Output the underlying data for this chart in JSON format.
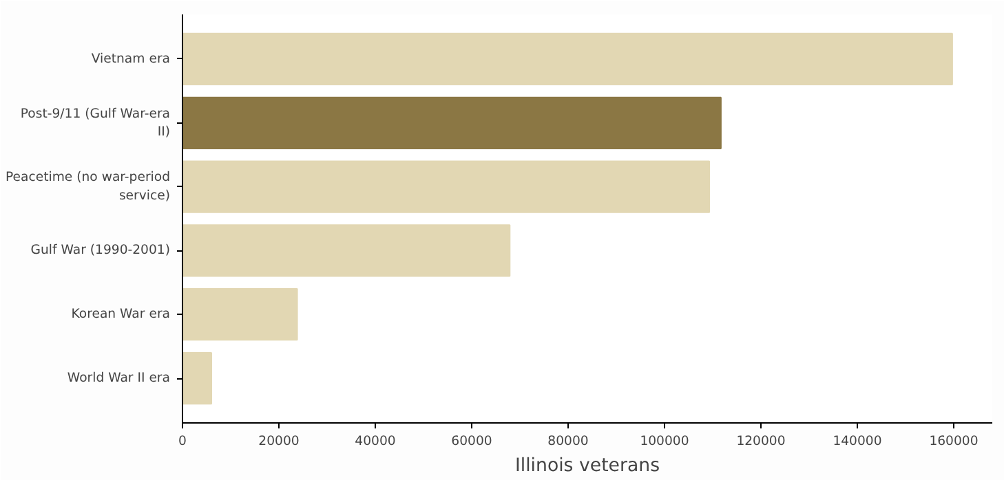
{
  "chart_data": {
    "type": "bar",
    "orientation": "horizontal",
    "xlabel": "Illinois veterans",
    "categories": [
      "Vietnam era",
      "Post-9/11 (Gulf War-era II)",
      "Peacetime (no war-period service)",
      "Gulf War (1990-2001)",
      "Korean War era",
      "World War II era"
    ],
    "values": [
      159700,
      111700,
      109300,
      67900,
      23800,
      6000
    ],
    "colors": [
      "#e2d7b3",
      "#8b7744",
      "#e2d7b3",
      "#e2d7b3",
      "#e2d7b3",
      "#e2d7b3"
    ],
    "xlim": [
      0,
      168000
    ],
    "xticks": [
      0,
      20000,
      40000,
      60000,
      80000,
      100000,
      120000,
      140000,
      160000
    ],
    "grid": false
  }
}
